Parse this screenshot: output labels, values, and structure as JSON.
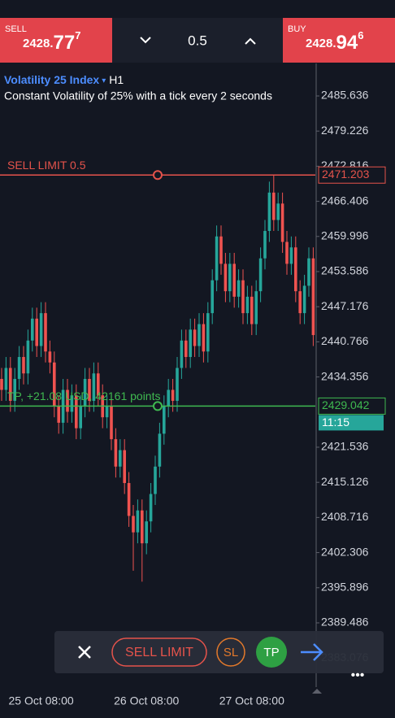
{
  "quote_bar": {
    "sell": {
      "label": "SELL",
      "price_head": "2428.",
      "price_big": "77",
      "price_sup": "7"
    },
    "lot": "0.5",
    "buy": {
      "label": "BUY",
      "price_head": "2428.",
      "price_big": "94",
      "price_sup": "6"
    }
  },
  "chart_data": {
    "type": "candlestick",
    "title": "Volatility 25 Index",
    "timeframe": "H1",
    "subtitle": "Constant Volatility of 25% with a tick every 2 seconds",
    "up_color": "#26a69a",
    "down_color": "#ef5350",
    "categories": [
      null,
      null,
      null,
      null,
      null,
      null,
      null,
      null,
      null,
      "25 Oct 08:00",
      null,
      null,
      null,
      null,
      null,
      null,
      null,
      null,
      null,
      null,
      null,
      null,
      null,
      null,
      null,
      null,
      null,
      null,
      null,
      null,
      null,
      null,
      null,
      "26 Oct 08:00",
      null,
      null,
      null,
      null,
      null,
      null,
      null,
      null,
      null,
      null,
      null,
      null,
      null,
      null,
      null,
      null,
      null,
      null,
      null,
      null,
      null,
      null,
      null,
      "27 Oct 08:00",
      null,
      null,
      null,
      null,
      null,
      null,
      null,
      null,
      null,
      null,
      null,
      null,
      null,
      null
    ],
    "open": [
      2434,
      2432,
      2436,
      2430,
      2434,
      2438,
      2435,
      2441,
      2445,
      2440,
      2446,
      2439,
      2437,
      2429,
      2426,
      2432,
      2428,
      2431,
      2425,
      2429,
      2434,
      2430,
      2435,
      2431,
      2427,
      2429,
      2423,
      2418,
      2421,
      2415,
      2409,
      2406,
      2410,
      2404,
      2408,
      2413,
      2418,
      2424,
      2429,
      2432,
      2430,
      2436,
      2441,
      2438,
      2443,
      2440,
      2444,
      2439,
      2446,
      2452,
      2460,
      2455,
      2450,
      2455,
      2449,
      2452,
      2446,
      2449,
      2444,
      2450,
      2456,
      2461,
      2468,
      2463,
      2466,
      2459,
      2455,
      2458,
      2450,
      2446,
      2451,
      2456
    ],
    "high": [
      2436,
      2438,
      2438,
      2436,
      2440,
      2440,
      2443,
      2447,
      2447,
      2448,
      2448,
      2441,
      2439,
      2431,
      2434,
      2434,
      2433,
      2433,
      2431,
      2436,
      2436,
      2437,
      2437,
      2433,
      2431,
      2431,
      2425,
      2423,
      2423,
      2417,
      2411,
      2412,
      2412,
      2410,
      2415,
      2420,
      2426,
      2431,
      2434,
      2434,
      2438,
      2443,
      2443,
      2445,
      2445,
      2446,
      2446,
      2448,
      2454,
      2462,
      2462,
      2457,
      2457,
      2457,
      2454,
      2454,
      2451,
      2451,
      2452,
      2458,
      2463,
      2470,
      2471.2,
      2468,
      2468,
      2461,
      2460,
      2460,
      2452,
      2453,
      2458,
      2458
    ],
    "low": [
      2430,
      2430,
      2428,
      2428,
      2432,
      2433,
      2433,
      2439,
      2438,
      2438,
      2437,
      2435,
      2427,
      2424,
      2424,
      2426,
      2426,
      2423,
      2423,
      2427,
      2428,
      2428,
      2429,
      2425,
      2425,
      2421,
      2416,
      2416,
      2413,
      2407,
      2399,
      2404,
      2397,
      2402,
      2406,
      2411,
      2416,
      2422,
      2427,
      2428,
      2428,
      2434,
      2436,
      2436,
      2438,
      2438,
      2437,
      2437,
      2444,
      2450,
      2453,
      2448,
      2448,
      2447,
      2447,
      2444,
      2444,
      2442,
      2442,
      2448,
      2454,
      2459,
      2461,
      2461,
      2457,
      2453,
      2453,
      2448,
      2444,
      2444,
      2449,
      2440
    ],
    "close": [
      2432,
      2436,
      2430,
      2434,
      2438,
      2435,
      2441,
      2445,
      2440,
      2446,
      2439,
      2437,
      2429,
      2426,
      2432,
      2428,
      2431,
      2425,
      2429,
      2434,
      2430,
      2435,
      2431,
      2427,
      2429,
      2423,
      2418,
      2421,
      2415,
      2409,
      2406,
      2410,
      2404,
      2408,
      2413,
      2418,
      2424,
      2429,
      2432,
      2430,
      2436,
      2441,
      2438,
      2443,
      2440,
      2444,
      2439,
      2446,
      2452,
      2460,
      2455,
      2450,
      2455,
      2449,
      2452,
      2446,
      2449,
      2444,
      2450,
      2456,
      2461,
      2468,
      2463,
      2466,
      2459,
      2455,
      2458,
      2450,
      2446,
      2451,
      2456,
      2442
    ],
    "ylim": [
      2377.76,
      2491.57
    ],
    "yticks": [
      2485.636,
      2479.226,
      2472.816,
      2466.406,
      2459.996,
      2453.586,
      2447.176,
      2440.766,
      2434.356,
      2421.536,
      2415.126,
      2408.716,
      2402.306,
      2395.896,
      2389.486,
      2383.076
    ],
    "hlines": [
      {
        "label": "SELL LIMIT 0.5",
        "value": 2471.203,
        "color": "#e5534b"
      },
      {
        "label": "TP, +21.08 USD, 42161 points",
        "value": 2429.042,
        "color": "#3fb950",
        "timer": "11:15"
      }
    ]
  },
  "order_panel": {
    "buttons": [
      "SELL LIMIT",
      "SL",
      "TP"
    ]
  }
}
